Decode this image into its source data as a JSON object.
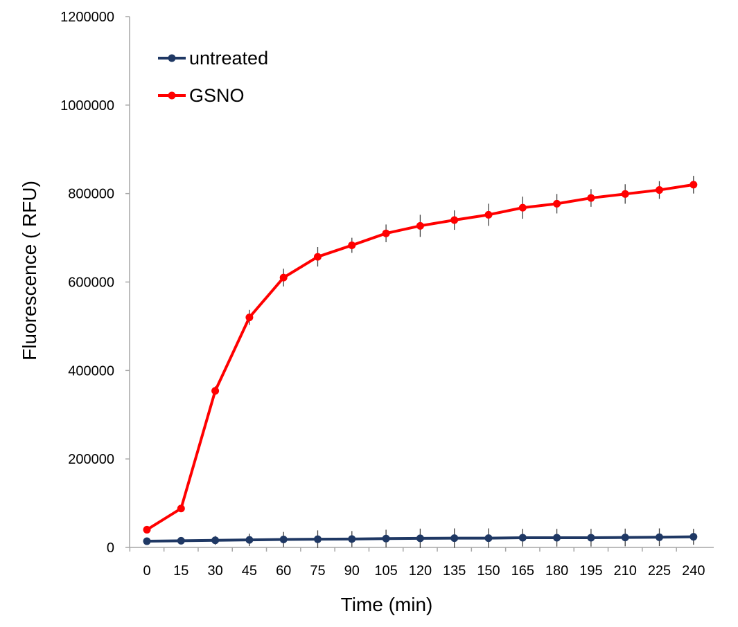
{
  "chart_data": {
    "type": "line",
    "xlabel": "Time (min)",
    "ylabel": "Fluorescence ( RFU)",
    "categories": [
      "0",
      "15",
      "30",
      "45",
      "60",
      "75",
      "90",
      "105",
      "120",
      "135",
      "150",
      "165",
      "180",
      "195",
      "210",
      "225",
      "240"
    ],
    "ylim": [
      0,
      1200000
    ],
    "yticks": [
      0,
      200000,
      400000,
      600000,
      800000,
      1000000,
      1200000
    ],
    "grid": false,
    "legend_position": "top-left",
    "series": [
      {
        "name": "untreated",
        "color": "#1f3864",
        "values": [
          14000,
          15000,
          16000,
          17000,
          18000,
          18500,
          19000,
          20000,
          20500,
          21000,
          21000,
          22000,
          22000,
          22000,
          22500,
          23000,
          24000
        ],
        "errors": [
          4000,
          5000,
          10000,
          14000,
          17000,
          20000,
          18000,
          20000,
          22000,
          22000,
          22000,
          20000,
          20000,
          20000,
          20000,
          20000,
          18000
        ]
      },
      {
        "name": "GSNO",
        "color": "#ff0000",
        "values": [
          40000,
          88000,
          354000,
          520000,
          610000,
          657000,
          683000,
          710000,
          727000,
          740000,
          752000,
          768000,
          777000,
          790000,
          799000,
          808000,
          820000
        ],
        "errors": [
          3000,
          4000,
          10000,
          17000,
          20000,
          22000,
          17000,
          20000,
          25000,
          22000,
          25000,
          25000,
          22000,
          20000,
          22000,
          20000,
          20000
        ]
      }
    ]
  }
}
